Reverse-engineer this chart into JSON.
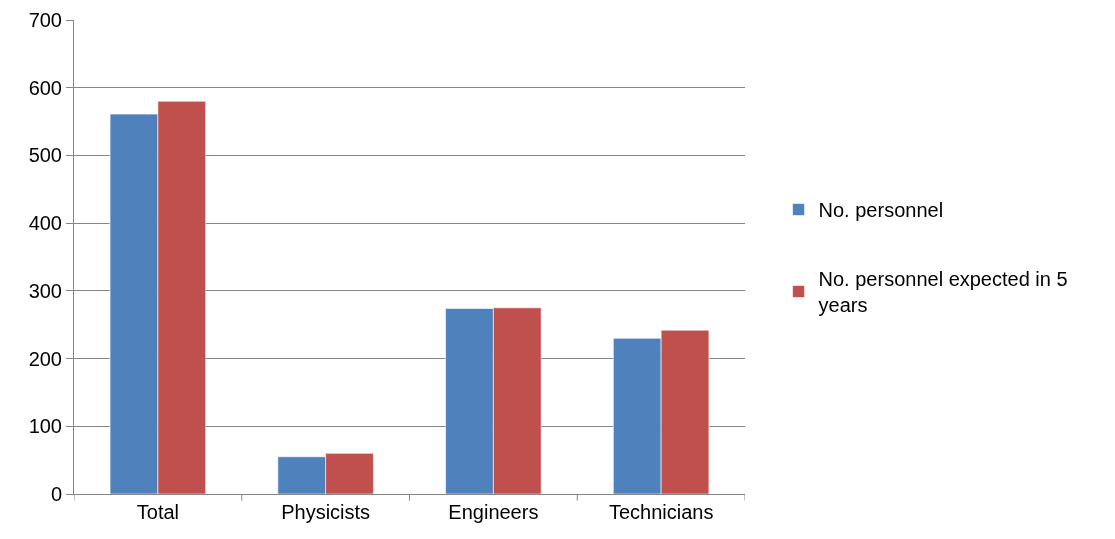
{
  "chart_data": {
    "type": "bar",
    "categories": [
      "Total",
      "Physicists",
      "Engineers",
      "Technicians"
    ],
    "series": [
      {
        "name": "No. personnel",
        "color": "#4f81bd",
        "values": [
          561,
          55,
          274,
          230
        ]
      },
      {
        "name": "No. personnel expected in 5 years",
        "color": "#c0504d",
        "values": [
          580,
          60,
          275,
          242
        ]
      }
    ],
    "ylim": [
      0,
      700
    ],
    "yticks": [
      0,
      100,
      200,
      300,
      400,
      500,
      600,
      700
    ],
    "grid": "y",
    "legend": "right"
  }
}
